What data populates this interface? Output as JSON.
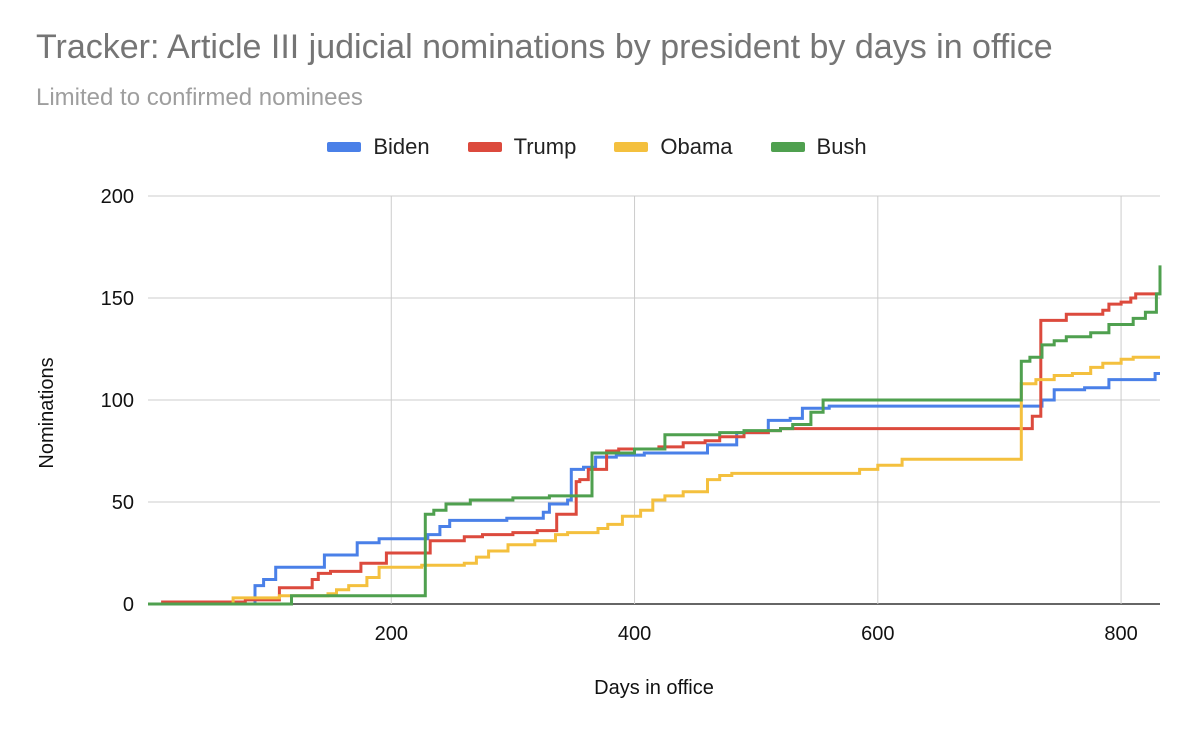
{
  "chart_data": {
    "type": "line",
    "title": "Tracker: Article III judicial nominations by president by days in office",
    "subtitle": "Limited to confirmed nominees",
    "xlabel": "Days in office",
    "ylabel": "Nominations",
    "xlim": [
      0,
      832
    ],
    "ylim": [
      0,
      200
    ],
    "x_ticks": [
      200,
      400,
      600,
      800
    ],
    "y_ticks": [
      0,
      50,
      100,
      150,
      200
    ],
    "grid": true,
    "legend_position": "top",
    "step": true,
    "series": [
      {
        "name": "Biden",
        "color": "#4a80e8",
        "points": [
          [
            0,
            0
          ],
          [
            88,
            0
          ],
          [
            88,
            9
          ],
          [
            95,
            9
          ],
          [
            95,
            12
          ],
          [
            105,
            12
          ],
          [
            105,
            18
          ],
          [
            145,
            18
          ],
          [
            145,
            24
          ],
          [
            172,
            24
          ],
          [
            172,
            30
          ],
          [
            190,
            30
          ],
          [
            190,
            32
          ],
          [
            230,
            32
          ],
          [
            230,
            34
          ],
          [
            240,
            34
          ],
          [
            240,
            38
          ],
          [
            248,
            38
          ],
          [
            248,
            41
          ],
          [
            295,
            41
          ],
          [
            295,
            42
          ],
          [
            325,
            42
          ],
          [
            325,
            45
          ],
          [
            330,
            45
          ],
          [
            330,
            49
          ],
          [
            345,
            49
          ],
          [
            345,
            51
          ],
          [
            348,
            51
          ],
          [
            348,
            66
          ],
          [
            358,
            66
          ],
          [
            358,
            67
          ],
          [
            368,
            67
          ],
          [
            368,
            72
          ],
          [
            385,
            72
          ],
          [
            385,
            73
          ],
          [
            408,
            73
          ],
          [
            408,
            74
          ],
          [
            460,
            74
          ],
          [
            460,
            78
          ],
          [
            484,
            78
          ],
          [
            484,
            84
          ],
          [
            510,
            84
          ],
          [
            510,
            90
          ],
          [
            528,
            90
          ],
          [
            528,
            91
          ],
          [
            538,
            91
          ],
          [
            538,
            96
          ],
          [
            560,
            96
          ],
          [
            560,
            97
          ],
          [
            735,
            97
          ],
          [
            735,
            100
          ],
          [
            745,
            100
          ],
          [
            745,
            105
          ],
          [
            770,
            105
          ],
          [
            770,
            106
          ],
          [
            790,
            106
          ],
          [
            790,
            110
          ],
          [
            828,
            110
          ],
          [
            828,
            113
          ],
          [
            832,
            113
          ]
        ]
      },
      {
        "name": "Trump",
        "color": "#dc4a3d",
        "points": [
          [
            0,
            0
          ],
          [
            12,
            0
          ],
          [
            12,
            1
          ],
          [
            80,
            1
          ],
          [
            80,
            2
          ],
          [
            108,
            2
          ],
          [
            108,
            8
          ],
          [
            135,
            8
          ],
          [
            135,
            12
          ],
          [
            140,
            12
          ],
          [
            140,
            15
          ],
          [
            150,
            15
          ],
          [
            150,
            16
          ],
          [
            175,
            16
          ],
          [
            175,
            20
          ],
          [
            196,
            20
          ],
          [
            196,
            25
          ],
          [
            232,
            25
          ],
          [
            232,
            31
          ],
          [
            260,
            31
          ],
          [
            260,
            33
          ],
          [
            275,
            33
          ],
          [
            275,
            34
          ],
          [
            300,
            34
          ],
          [
            300,
            35
          ],
          [
            320,
            35
          ],
          [
            320,
            36
          ],
          [
            336,
            36
          ],
          [
            336,
            44
          ],
          [
            352,
            44
          ],
          [
            352,
            60
          ],
          [
            355,
            60
          ],
          [
            355,
            61
          ],
          [
            362,
            61
          ],
          [
            362,
            66
          ],
          [
            377,
            66
          ],
          [
            377,
            75
          ],
          [
            387,
            75
          ],
          [
            387,
            76
          ],
          [
            420,
            76
          ],
          [
            420,
            77
          ],
          [
            440,
            77
          ],
          [
            440,
            79
          ],
          [
            458,
            79
          ],
          [
            458,
            80
          ],
          [
            470,
            80
          ],
          [
            470,
            82
          ],
          [
            490,
            82
          ],
          [
            490,
            84
          ],
          [
            510,
            84
          ],
          [
            510,
            85
          ],
          [
            520,
            85
          ],
          [
            520,
            86
          ],
          [
            727,
            86
          ],
          [
            727,
            92
          ],
          [
            734,
            92
          ],
          [
            734,
            139
          ],
          [
            755,
            139
          ],
          [
            755,
            142
          ],
          [
            785,
            142
          ],
          [
            785,
            144
          ],
          [
            790,
            144
          ],
          [
            790,
            147
          ],
          [
            800,
            147
          ],
          [
            800,
            148
          ],
          [
            808,
            148
          ],
          [
            808,
            150
          ],
          [
            812,
            150
          ],
          [
            812,
            152
          ],
          [
            832,
            152
          ]
        ]
      },
      {
        "name": "Obama",
        "color": "#f4c03e",
        "points": [
          [
            0,
            0
          ],
          [
            70,
            0
          ],
          [
            70,
            3
          ],
          [
            108,
            3
          ],
          [
            108,
            4
          ],
          [
            148,
            4
          ],
          [
            148,
            5
          ],
          [
            155,
            5
          ],
          [
            155,
            7
          ],
          [
            165,
            7
          ],
          [
            165,
            9
          ],
          [
            180,
            9
          ],
          [
            180,
            13
          ],
          [
            190,
            13
          ],
          [
            190,
            18
          ],
          [
            225,
            18
          ],
          [
            225,
            19
          ],
          [
            260,
            19
          ],
          [
            260,
            20
          ],
          [
            270,
            20
          ],
          [
            270,
            23
          ],
          [
            280,
            23
          ],
          [
            280,
            26
          ],
          [
            296,
            26
          ],
          [
            296,
            29
          ],
          [
            318,
            29
          ],
          [
            318,
            31
          ],
          [
            335,
            31
          ],
          [
            335,
            34
          ],
          [
            345,
            34
          ],
          [
            345,
            35
          ],
          [
            370,
            35
          ],
          [
            370,
            37
          ],
          [
            378,
            37
          ],
          [
            378,
            39
          ],
          [
            390,
            39
          ],
          [
            390,
            43
          ],
          [
            405,
            43
          ],
          [
            405,
            46
          ],
          [
            415,
            46
          ],
          [
            415,
            51
          ],
          [
            425,
            51
          ],
          [
            425,
            53
          ],
          [
            440,
            53
          ],
          [
            440,
            55
          ],
          [
            460,
            55
          ],
          [
            460,
            61
          ],
          [
            470,
            61
          ],
          [
            470,
            63
          ],
          [
            480,
            63
          ],
          [
            480,
            64
          ],
          [
            585,
            64
          ],
          [
            585,
            66
          ],
          [
            600,
            66
          ],
          [
            600,
            68
          ],
          [
            620,
            68
          ],
          [
            620,
            71
          ],
          [
            718,
            71
          ],
          [
            718,
            108
          ],
          [
            730,
            108
          ],
          [
            730,
            110
          ],
          [
            745,
            110
          ],
          [
            745,
            112
          ],
          [
            760,
            112
          ],
          [
            760,
            113
          ],
          [
            775,
            113
          ],
          [
            775,
            116
          ],
          [
            785,
            116
          ],
          [
            785,
            118
          ],
          [
            800,
            118
          ],
          [
            800,
            120
          ],
          [
            810,
            120
          ],
          [
            810,
            121
          ],
          [
            832,
            121
          ]
        ]
      },
      {
        "name": "Bush",
        "color": "#4fa04f",
        "points": [
          [
            0,
            0
          ],
          [
            118,
            0
          ],
          [
            118,
            4
          ],
          [
            228,
            4
          ],
          [
            228,
            44
          ],
          [
            235,
            44
          ],
          [
            235,
            46
          ],
          [
            245,
            46
          ],
          [
            245,
            49
          ],
          [
            265,
            49
          ],
          [
            265,
            51
          ],
          [
            300,
            51
          ],
          [
            300,
            52
          ],
          [
            330,
            52
          ],
          [
            330,
            53
          ],
          [
            365,
            53
          ],
          [
            365,
            74
          ],
          [
            400,
            74
          ],
          [
            400,
            76
          ],
          [
            425,
            76
          ],
          [
            425,
            83
          ],
          [
            470,
            83
          ],
          [
            470,
            84
          ],
          [
            490,
            84
          ],
          [
            490,
            85
          ],
          [
            520,
            85
          ],
          [
            520,
            86
          ],
          [
            530,
            86
          ],
          [
            530,
            88
          ],
          [
            545,
            88
          ],
          [
            545,
            94
          ],
          [
            555,
            94
          ],
          [
            555,
            100
          ],
          [
            718,
            100
          ],
          [
            718,
            119
          ],
          [
            725,
            119
          ],
          [
            725,
            121
          ],
          [
            735,
            121
          ],
          [
            735,
            127
          ],
          [
            745,
            127
          ],
          [
            745,
            129
          ],
          [
            755,
            129
          ],
          [
            755,
            131
          ],
          [
            775,
            131
          ],
          [
            775,
            133
          ],
          [
            790,
            133
          ],
          [
            790,
            137
          ],
          [
            810,
            137
          ],
          [
            810,
            140
          ],
          [
            820,
            140
          ],
          [
            820,
            143
          ],
          [
            829,
            143
          ],
          [
            829,
            152
          ],
          [
            832,
            152
          ],
          [
            832,
            166
          ]
        ]
      }
    ]
  }
}
